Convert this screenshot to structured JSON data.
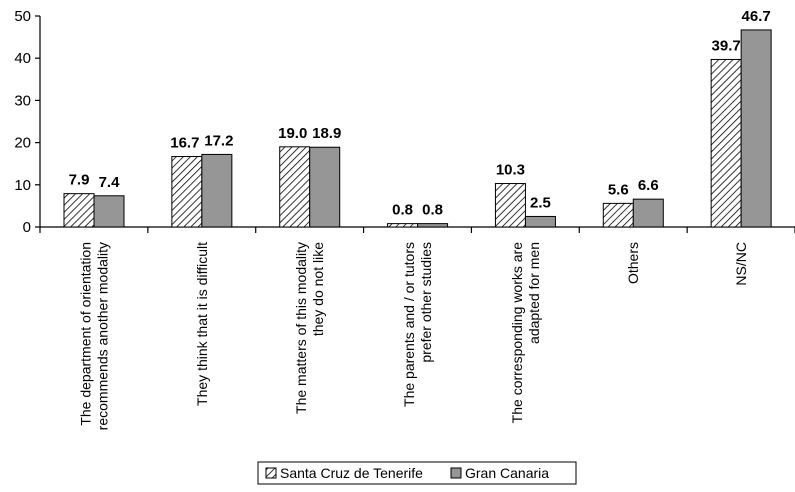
{
  "chart_data": {
    "type": "bar",
    "categories": [
      [
        "The department of orientation",
        "recommends another modality"
      ],
      [
        "They think that it is difficult"
      ],
      [
        "The matters of this modality",
        "they do not like"
      ],
      [
        "The parents and / or tutors",
        "prefer other studies"
      ],
      [
        "The corresponding works are",
        "adapted for men"
      ],
      [
        "Others"
      ],
      [
        "NS/NC"
      ]
    ],
    "series": [
      {
        "name": "Santa Cruz de Tenerife",
        "values": [
          7.9,
          16.7,
          19.0,
          0.8,
          10.3,
          5.6,
          39.7
        ],
        "labels": [
          "7.9",
          "16.7",
          "19.0",
          "0.8",
          "10.3",
          "5.6",
          "39.7"
        ],
        "pattern": "hatch",
        "color": "#ffffff"
      },
      {
        "name": "Gran Canaria",
        "values": [
          7.4,
          17.2,
          18.9,
          0.8,
          2.5,
          6.6,
          46.7
        ],
        "labels": [
          "7.4",
          "17.2",
          "18.9",
          "0.8",
          "2.5",
          "6.6",
          "46.7"
        ],
        "pattern": "solid",
        "color": "#969696"
      }
    ],
    "title": "",
    "xlabel": "",
    "ylabel": "",
    "ylim": [
      0,
      50
    ],
    "yticks": [
      0,
      10,
      20,
      30,
      40,
      50
    ],
    "grid": false,
    "legend": "bottom"
  }
}
